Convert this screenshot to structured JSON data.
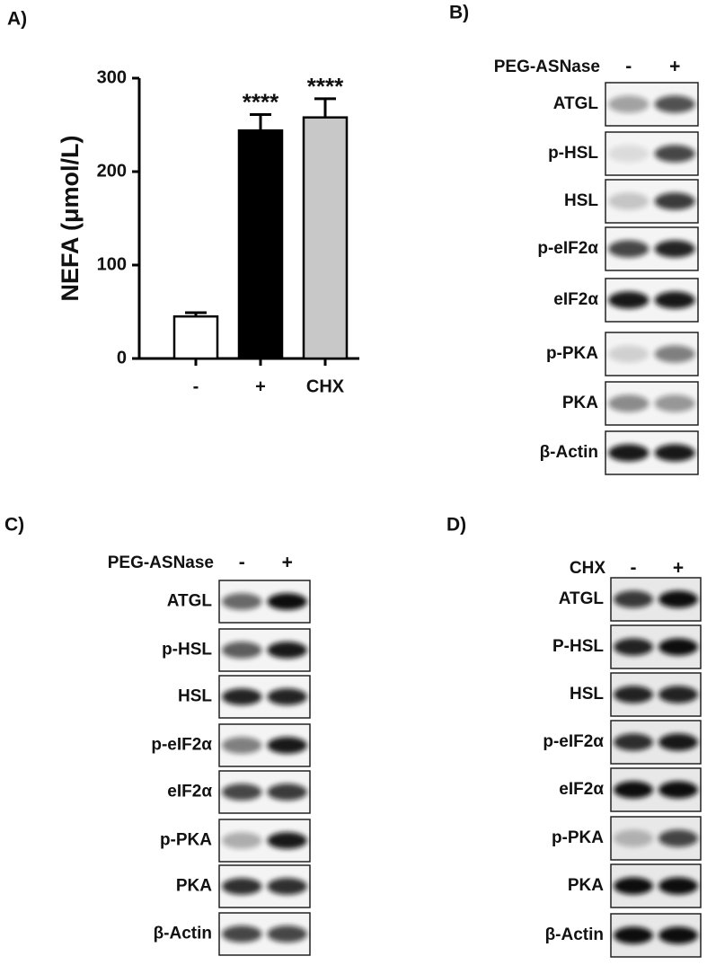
{
  "chart_data": {
    "type": "bar",
    "panel_label": "A)",
    "ylabel": "NEFA (μmol/L)",
    "categories": [
      "-",
      "+",
      "CHX"
    ],
    "values": [
      45,
      244,
      258
    ],
    "errors": [
      4,
      17,
      20
    ],
    "colors": [
      "#ffffff",
      "#000000",
      "#c8c8c8"
    ],
    "annotations": [
      null,
      "****",
      "****"
    ],
    "ylim": [
      0,
      300
    ],
    "yticks": [
      0,
      100,
      200,
      300
    ]
  },
  "blots": [
    {
      "panel_label": "B)",
      "treatment": "PEG-ASNase",
      "lanes": [
        "-",
        "+"
      ],
      "rows": [
        "ATGL",
        "p-HSL",
        "HSL",
        "p-eIF2α",
        "eIF2α",
        "p-PKA",
        "PKA",
        "β-Actin"
      ]
    },
    {
      "panel_label": "C)",
      "treatment": "PEG-ASNase",
      "lanes": [
        "-",
        "+"
      ],
      "rows": [
        "ATGL",
        "p-HSL",
        "HSL",
        "p-eIF2α",
        "eIF2α",
        "p-PKA",
        "PKA",
        "β-Actin"
      ]
    },
    {
      "panel_label": "D)",
      "treatment": "CHX",
      "lanes": [
        "-",
        "+"
      ],
      "rows": [
        "ATGL",
        "P-HSL",
        "HSL",
        "p-eIF2α",
        "eIF2α",
        "p-PKA",
        "PKA",
        "β-Actin"
      ]
    }
  ]
}
